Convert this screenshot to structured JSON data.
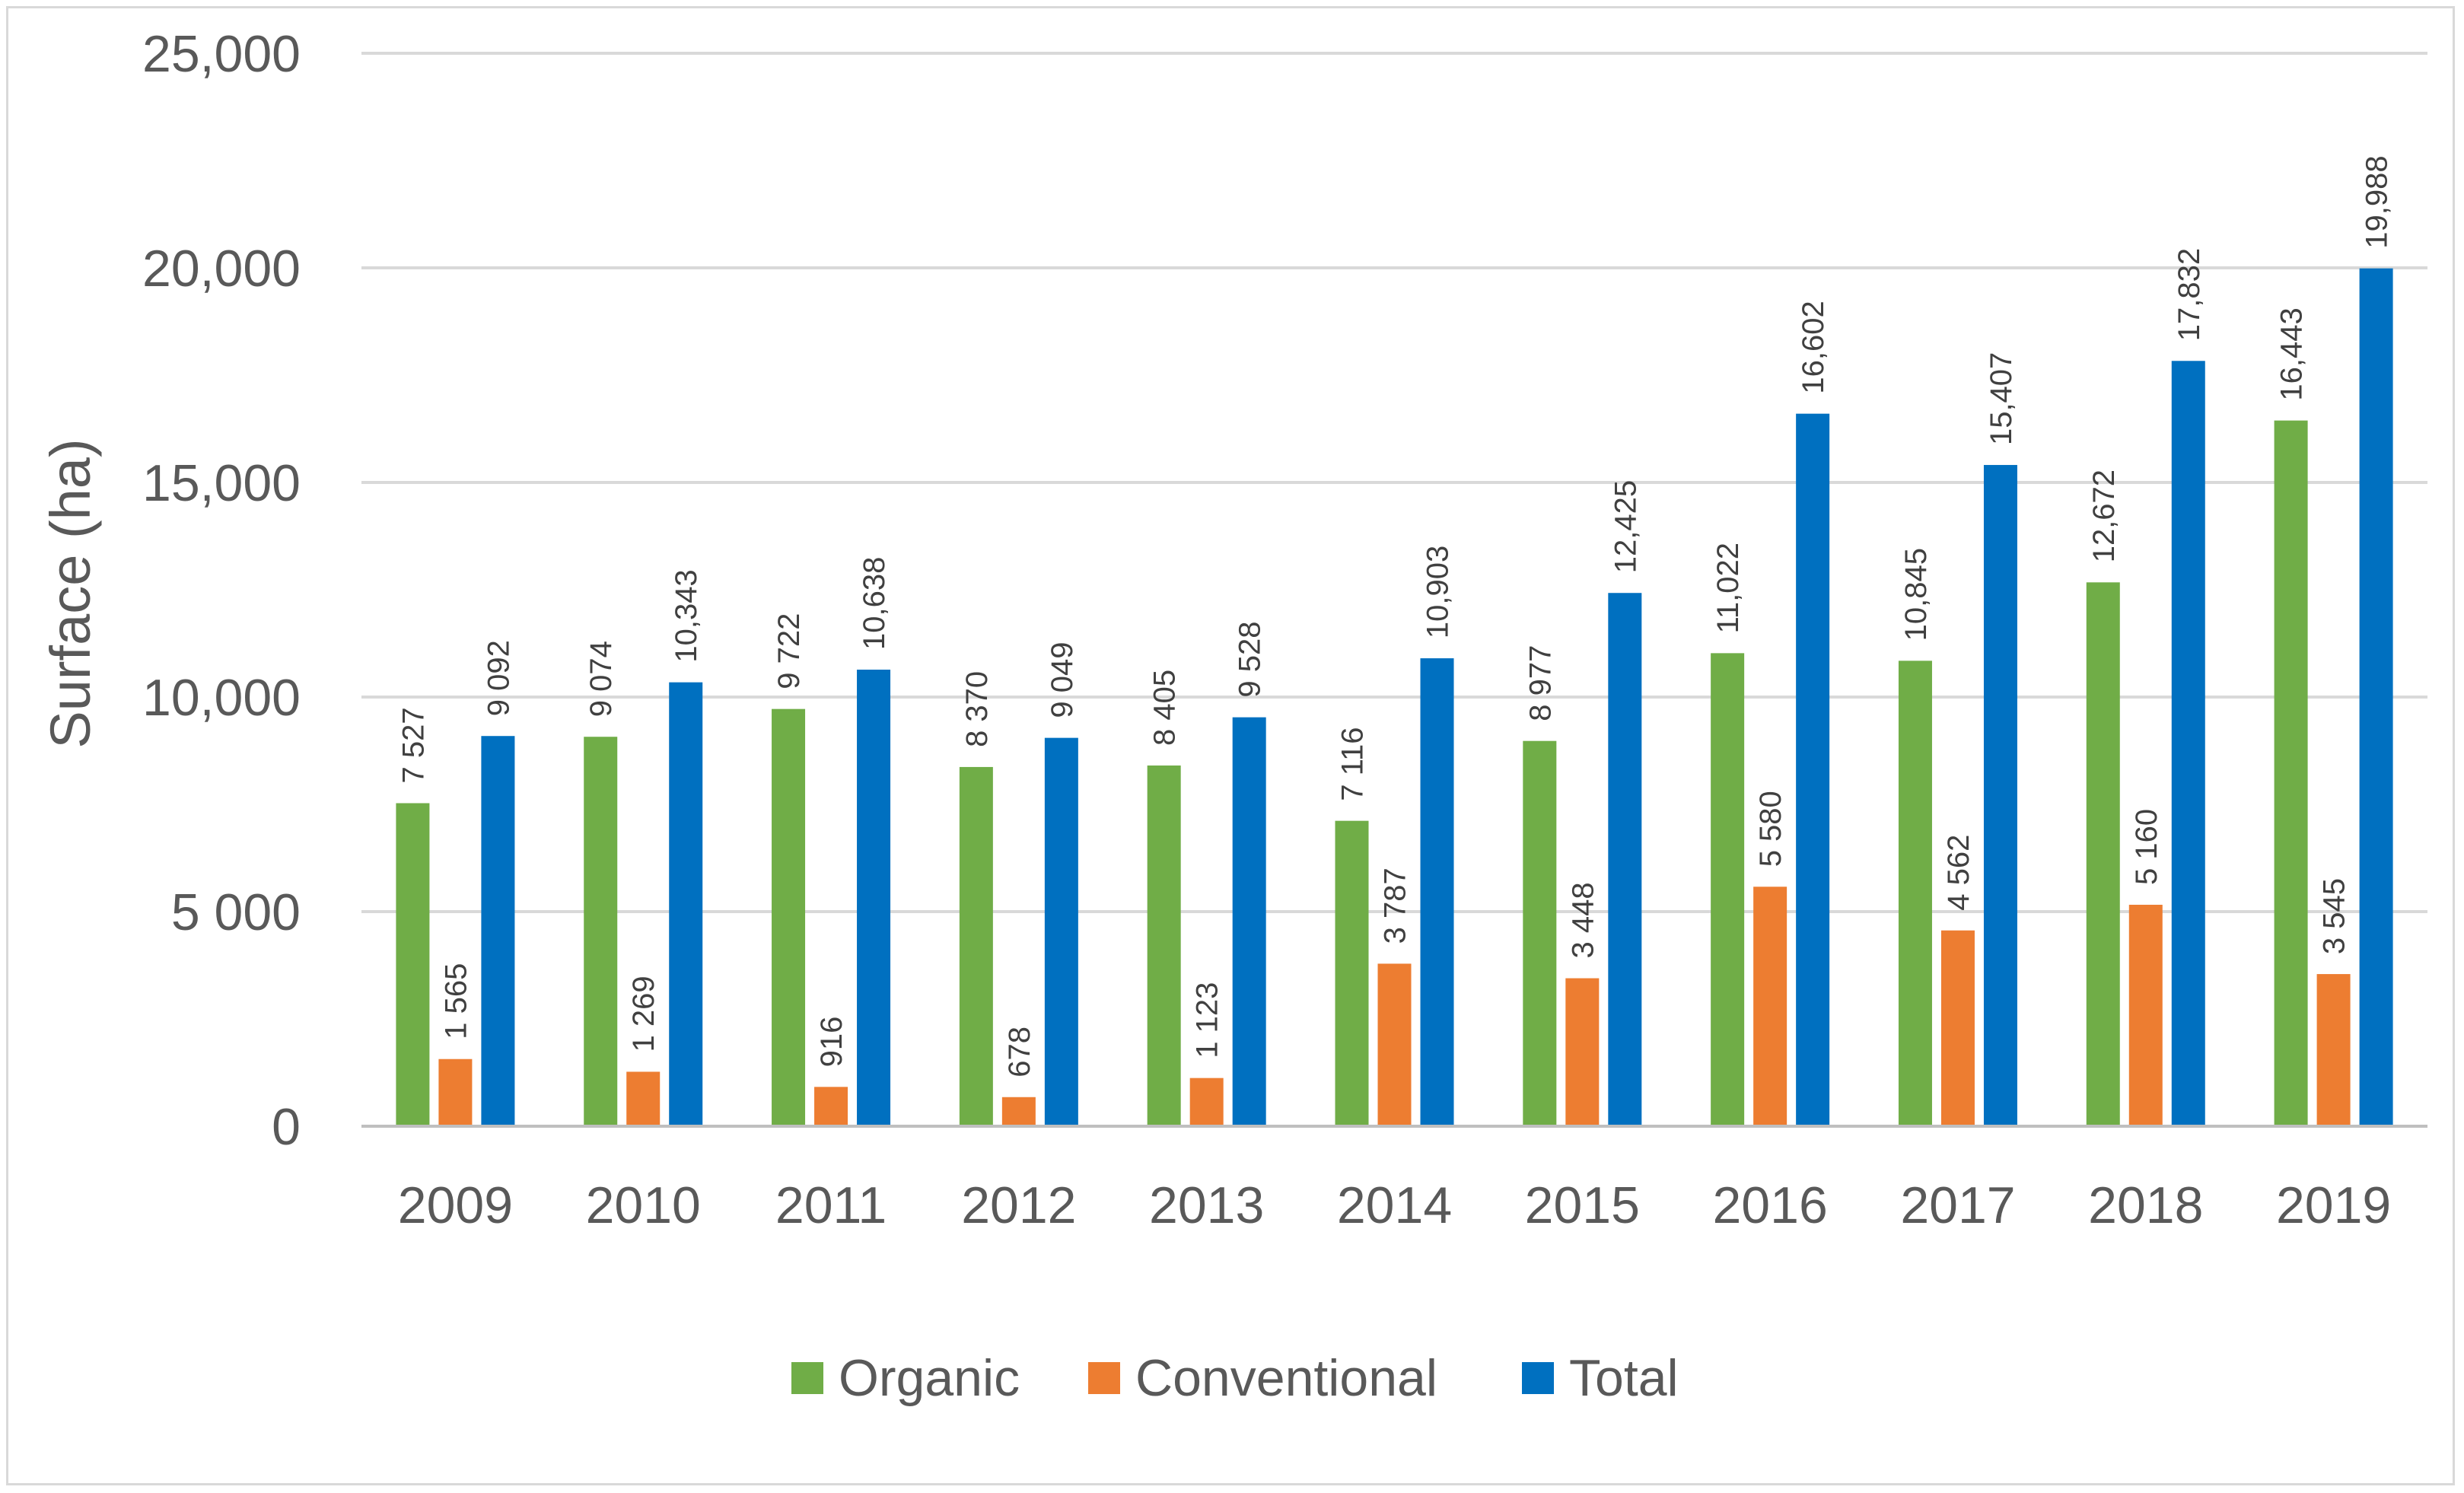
{
  "chart_data": {
    "type": "bar",
    "title": "",
    "xlabel": "",
    "ylabel": "Surface (ha)",
    "ylim": [
      0,
      25000
    ],
    "y_ticks": [
      0,
      5000,
      10000,
      15000,
      20000,
      25000
    ],
    "y_tick_labels": [
      "0",
      "5 000",
      "10,000",
      "15,000",
      "20,000",
      "25,000"
    ],
    "grid": true,
    "legend_position": "bottom",
    "categories": [
      "2009",
      "2010",
      "2011",
      "2012",
      "2013",
      "2014",
      "2015",
      "2016",
      "2017",
      "2018",
      "2019"
    ],
    "series": [
      {
        "name": "Organic",
        "color": "#70ad47",
        "values": [
          7527,
          9074,
          9722,
          8370,
          8405,
          7116,
          8977,
          11022,
          10845,
          12672,
          16443
        ],
        "labels": [
          "7 527",
          "9 074",
          "9 722",
          "8 370",
          "8 405",
          "7 116",
          "8 977",
          "11,022",
          "10,845",
          "12,672",
          "16,443"
        ]
      },
      {
        "name": "Conventional",
        "color": "#ed7d31",
        "values": [
          1565,
          1269,
          916,
          678,
          1123,
          3787,
          3448,
          5580,
          4562,
          5160,
          3545
        ],
        "labels": [
          "1 565",
          "1 269",
          "916",
          "678",
          "1 123",
          "3 787",
          "3 448",
          "5 580",
          "4 562",
          "5 160",
          "3 545"
        ]
      },
      {
        "name": "Total",
        "color": "#0070c0",
        "values": [
          9092,
          10343,
          10638,
          9049,
          9528,
          10903,
          12425,
          16602,
          15407,
          17832,
          19988
        ],
        "labels": [
          "9 092",
          "10,343",
          "10,638",
          "9 049",
          "9 528",
          "10,903",
          "12,425",
          "16,602",
          "15,407",
          "17,832",
          "19,988"
        ]
      }
    ]
  }
}
